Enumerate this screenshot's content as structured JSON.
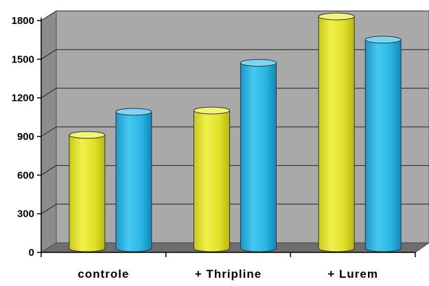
{
  "chart_data": {
    "type": "bar",
    "categories": [
      "controle",
      "+ Thripline",
      "+ Lurem"
    ],
    "series": [
      {
        "values": [
          880,
          1070,
          1800
        ]
      },
      {
        "values": [
          1060,
          1440,
          1620
        ]
      }
    ],
    "ylim": [
      0,
      1800
    ],
    "yticks": [
      0,
      300,
      600,
      900,
      1200,
      1500,
      1800
    ],
    "ytick_labels": [
      "0",
      "300",
      "600",
      "900",
      "1200",
      "1500",
      "1800"
    ],
    "grid": true,
    "style": "3d-cylinder",
    "colors": {
      "series": [
        "#e6e62e",
        "#2fb8e6"
      ],
      "series_top": [
        "#f3f37a",
        "#7ad6f3"
      ],
      "wall": "#a9a9a9",
      "floor": "#6e6e6e",
      "side_wall": "#8c8c8c"
    }
  }
}
